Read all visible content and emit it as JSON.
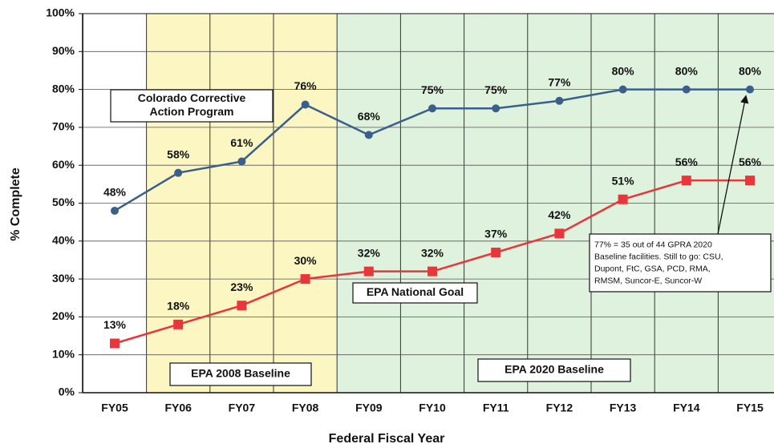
{
  "chart_data": {
    "type": "line",
    "x_label": "Federal Fiscal Year",
    "y_label": "% Complete",
    "categories": [
      "FY05",
      "FY06",
      "FY07",
      "FY08",
      "FY09",
      "FY10",
      "FY11",
      "FY12",
      "FY13",
      "FY14",
      "FY15"
    ],
    "series": [
      {
        "name": "Colorado Corrective Action Program",
        "color": "#3b5f8c",
        "values": [
          48,
          58,
          61,
          76,
          68,
          75,
          75,
          77,
          80,
          80,
          80
        ],
        "value_labels": [
          "48%",
          "58%",
          "61%",
          "76%",
          "68%",
          "75%",
          "75%",
          "77%",
          "80%",
          "80%",
          "80%"
        ]
      },
      {
        "name": "EPA National Goal",
        "color": "#e8363b",
        "values": [
          13,
          18,
          23,
          30,
          32,
          32,
          37,
          42,
          51,
          56,
          56
        ],
        "value_labels": [
          "13%",
          "18%",
          "23%",
          "30%",
          "32%",
          "32%",
          "37%",
          "42%",
          "51%",
          "56%",
          "56%"
        ]
      }
    ],
    "ylim": [
      0,
      100
    ],
    "yticks": [
      {
        "value": 0,
        "label": "0%"
      },
      {
        "value": 10,
        "label": "10%"
      },
      {
        "value": 20,
        "label": "20%"
      },
      {
        "value": 30,
        "label": "30%"
      },
      {
        "value": 40,
        "label": "40%"
      },
      {
        "value": 50,
        "label": "50%"
      },
      {
        "value": 60,
        "label": "60%"
      },
      {
        "value": 70,
        "label": "70%"
      },
      {
        "value": 80,
        "label": "80%"
      },
      {
        "value": 90,
        "label": "90%"
      },
      {
        "value": 100,
        "label": "100%"
      }
    ],
    "grid": true,
    "annotations": [
      {
        "text": [
          "Colorado Corrective",
          "Action Program"
        ]
      },
      {
        "text": [
          "EPA National Goal"
        ]
      },
      {
        "text": [
          "EPA 2008 Baseline"
        ]
      },
      {
        "text": [
          "EPA 2020 Baseline"
        ]
      },
      {
        "text": [
          "77% = 35 out of 44 GPRA 2020",
          "Baseline facilities. Still to go:  CSU,",
          "Dupont, FtC, GSA, PCD, RMA,",
          "RMSM, Suncor-E, Suncor-W"
        ]
      }
    ]
  }
}
